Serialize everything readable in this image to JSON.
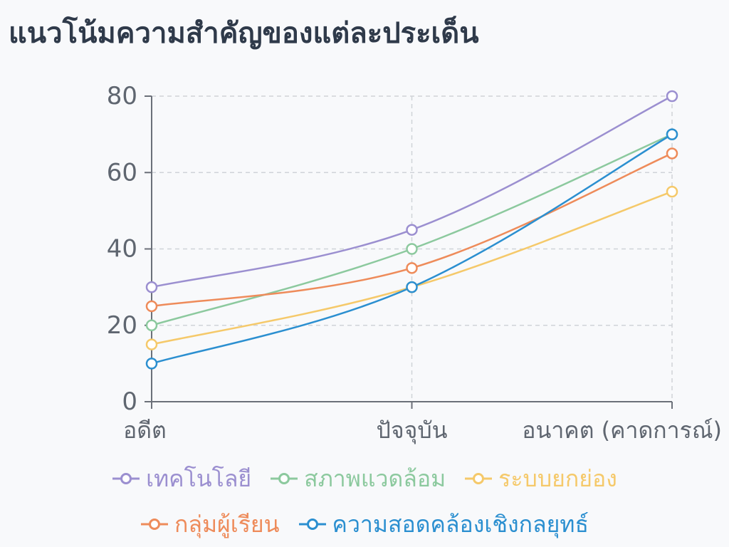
{
  "chart_data": {
    "type": "line",
    "title": "แนวโน้มความสำคัญของแต่ละประเด็น",
    "categories": [
      "อดีต",
      "ปัจจุบัน",
      "อนาคต (คาดการณ์)"
    ],
    "ylim": [
      0,
      80
    ],
    "yticks": [
      0,
      20,
      40,
      60,
      80
    ],
    "grid": true,
    "legend_position": "bottom",
    "series": [
      {
        "name": "เทคโนโลยี",
        "color": "#9b8fd0",
        "values": [
          30,
          45,
          80
        ]
      },
      {
        "name": "สภาพแวดล้อม",
        "color": "#8cc99e",
        "values": [
          20,
          40,
          70
        ]
      },
      {
        "name": "ระบบยกย่อง",
        "color": "#f5c96a",
        "values": [
          15,
          30,
          55
        ]
      },
      {
        "name": "กลุ่มผู้เรียน",
        "color": "#ee8b5a",
        "values": [
          25,
          35,
          65
        ]
      },
      {
        "name": "ความสอดคล้องเชิงกลยุทธ์",
        "color": "#2b8fd0",
        "values": [
          10,
          30,
          70
        ]
      }
    ]
  }
}
